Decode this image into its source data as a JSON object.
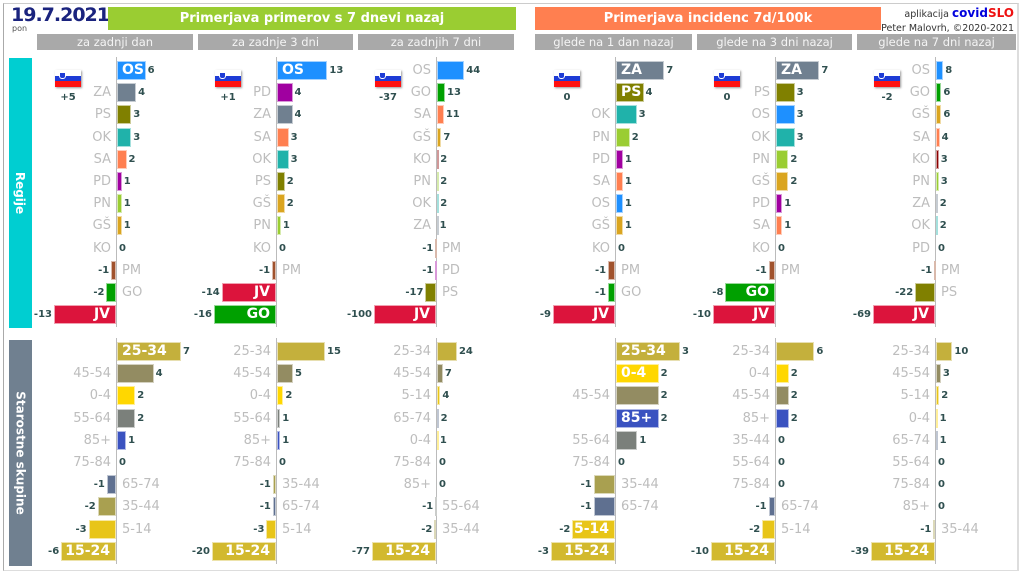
{
  "date": "19.7.2021",
  "day": "pon",
  "header_cases": "Primerjava primerov s 7 dnevi nazaj",
  "header_incidence": "Primerjava incidenc 7d/100k",
  "credit": {
    "app_label": "aplikacija",
    "brand_a": "covid",
    "brand_b": "SLO",
    "author": "Peter Malovrh, ©2020-2021"
  },
  "side_labels": {
    "regions": "Regije",
    "ages": "Starostne skupine"
  },
  "colors": {
    "header_cases": "#9acd32",
    "header_incidence": "#ff7f50",
    "side_regions": "#00ced1",
    "side_ages": "#708090",
    "OS": "#1e90ff",
    "ZA": "#708090",
    "PS": "#808000",
    "OK": "#20b2aa",
    "SA": "#ff7f50",
    "PD": "#a000a0",
    "PN": "#9acd32",
    "GŠ": "#daa520",
    "KO": "#8b0000",
    "PM": "#a0522d",
    "GO": "#00a000",
    "JV": "#dc143c",
    "25-34": "#c4b03c",
    "45-54": "#938c62",
    "0-4": "#ffd700",
    "55-64": "#7b807b",
    "85+": "#3a52c0",
    "75-84": "#999999",
    "65-74": "#5f7090",
    "35-44": "#a9a050",
    "5-14": "#e8c518",
    "15-24": "#d2b92e"
  },
  "chart_data": {
    "type": "bar",
    "orientation": "horizontal-diverging",
    "panels": [
      {
        "title": "za zadnji dan",
        "group": "cases",
        "country_change": "+5",
        "regions": [
          {
            "c": "OS",
            "v": 6,
            "in": true
          },
          {
            "c": "ZA",
            "v": 4
          },
          {
            "c": "PS",
            "v": 3
          },
          {
            "c": "OK",
            "v": 3
          },
          {
            "c": "SA",
            "v": 2
          },
          {
            "c": "PD",
            "v": 1
          },
          {
            "c": "PN",
            "v": 1
          },
          {
            "c": "GŠ",
            "v": 1
          },
          {
            "c": "KO",
            "v": 0
          },
          {
            "c": "PM",
            "v": -1
          },
          {
            "c": "GO",
            "v": -2
          },
          {
            "c": "JV",
            "v": -13,
            "in": true
          }
        ],
        "ages": [
          {
            "c": "25-34",
            "v": 7,
            "in": true
          },
          {
            "c": "45-54",
            "v": 4
          },
          {
            "c": "0-4",
            "v": 2
          },
          {
            "c": "55-64",
            "v": 2
          },
          {
            "c": "85+",
            "v": 1
          },
          {
            "c": "75-84",
            "v": 0
          },
          {
            "c": "65-74",
            "v": -1
          },
          {
            "c": "35-44",
            "v": -2
          },
          {
            "c": "5-14",
            "v": -3
          },
          {
            "c": "15-24",
            "v": -6,
            "in": true
          }
        ]
      },
      {
        "title": "za zadnje 3 dni",
        "group": "cases",
        "country_change": "+1",
        "regions": [
          {
            "c": "OS",
            "v": 13,
            "in": true
          },
          {
            "c": "PD",
            "v": 4
          },
          {
            "c": "ZA",
            "v": 4
          },
          {
            "c": "SA",
            "v": 3
          },
          {
            "c": "OK",
            "v": 3
          },
          {
            "c": "PS",
            "v": 2
          },
          {
            "c": "GŠ",
            "v": 2
          },
          {
            "c": "PN",
            "v": 1
          },
          {
            "c": "KO",
            "v": 0
          },
          {
            "c": "PM",
            "v": -1
          },
          {
            "c": "JV",
            "v": -14,
            "in": true
          },
          {
            "c": "GO",
            "v": -16,
            "in": true
          }
        ],
        "ages": [
          {
            "c": "25-34",
            "v": 15
          },
          {
            "c": "45-54",
            "v": 5
          },
          {
            "c": "0-4",
            "v": 2
          },
          {
            "c": "55-64",
            "v": 1
          },
          {
            "c": "85+",
            "v": 1
          },
          {
            "c": "75-84",
            "v": 0
          },
          {
            "c": "35-44",
            "v": -1
          },
          {
            "c": "65-74",
            "v": -1
          },
          {
            "c": "5-14",
            "v": -3
          },
          {
            "c": "15-24",
            "v": -20,
            "in": true
          }
        ]
      },
      {
        "title": "za zadnjih 7 dni",
        "group": "cases",
        "country_change": "-37",
        "regions": [
          {
            "c": "OS",
            "v": 44
          },
          {
            "c": "GO",
            "v": 13
          },
          {
            "c": "SA",
            "v": 11
          },
          {
            "c": "GŠ",
            "v": 7
          },
          {
            "c": "KO",
            "v": 2
          },
          {
            "c": "PN",
            "v": 2
          },
          {
            "c": "OK",
            "v": 2
          },
          {
            "c": "ZA",
            "v": 1
          },
          {
            "c": "PM",
            "v": -1
          },
          {
            "c": "PD",
            "v": -1
          },
          {
            "c": "PS",
            "v": -17
          },
          {
            "c": "JV",
            "v": -100,
            "in": true
          }
        ],
        "ages": [
          {
            "c": "25-34",
            "v": 24
          },
          {
            "c": "45-54",
            "v": 7
          },
          {
            "c": "5-14",
            "v": 4
          },
          {
            "c": "65-74",
            "v": 2
          },
          {
            "c": "0-4",
            "v": 1
          },
          {
            "c": "75-84",
            "v": 0
          },
          {
            "c": "85+",
            "v": 0
          },
          {
            "c": "55-64",
            "v": -1
          },
          {
            "c": "35-44",
            "v": -2
          },
          {
            "c": "15-24",
            "v": -77,
            "in": true
          }
        ]
      },
      {
        "title": "glede na 1 dan nazaj",
        "group": "incidence",
        "country_change": "0",
        "regions": [
          {
            "c": "ZA",
            "v": 7,
            "in": true
          },
          {
            "c": "PS",
            "v": 4,
            "in": true
          },
          {
            "c": "OK",
            "v": 3
          },
          {
            "c": "PN",
            "v": 2
          },
          {
            "c": "PD",
            "v": 1
          },
          {
            "c": "SA",
            "v": 1
          },
          {
            "c": "OS",
            "v": 1
          },
          {
            "c": "GŠ",
            "v": 1
          },
          {
            "c": "KO",
            "v": 0
          },
          {
            "c": "PM",
            "v": -1
          },
          {
            "c": "GO",
            "v": -1
          },
          {
            "c": "JV",
            "v": -9,
            "in": true
          }
        ],
        "ages": [
          {
            "c": "25-34",
            "v": 3,
            "in": true
          },
          {
            "c": "0-4",
            "v": 2,
            "in": true
          },
          {
            "c": "45-54",
            "v": 2
          },
          {
            "c": "85+",
            "v": 2,
            "in": true
          },
          {
            "c": "55-64",
            "v": 1
          },
          {
            "c": "75-84",
            "v": 0
          },
          {
            "c": "35-44",
            "v": -1
          },
          {
            "c": "65-74",
            "v": -1
          },
          {
            "c": "5-14",
            "v": -2,
            "in": true
          },
          {
            "c": "15-24",
            "v": -3,
            "in": true
          }
        ]
      },
      {
        "title": "glede na 3 dni nazaj",
        "group": "incidence",
        "country_change": "0",
        "regions": [
          {
            "c": "ZA",
            "v": 7,
            "in": true
          },
          {
            "c": "PS",
            "v": 3
          },
          {
            "c": "OS",
            "v": 3
          },
          {
            "c": "OK",
            "v": 3
          },
          {
            "c": "PN",
            "v": 2
          },
          {
            "c": "GŠ",
            "v": 2
          },
          {
            "c": "PD",
            "v": 1
          },
          {
            "c": "SA",
            "v": 1
          },
          {
            "c": "KO",
            "v": 0
          },
          {
            "c": "PM",
            "v": -1
          },
          {
            "c": "GO",
            "v": -8,
            "in": true
          },
          {
            "c": "JV",
            "v": -10,
            "in": true
          }
        ],
        "ages": [
          {
            "c": "25-34",
            "v": 6
          },
          {
            "c": "0-4",
            "v": 2
          },
          {
            "c": "45-54",
            "v": 2
          },
          {
            "c": "85+",
            "v": 2
          },
          {
            "c": "35-44",
            "v": 0
          },
          {
            "c": "55-64",
            "v": 0
          },
          {
            "c": "75-84",
            "v": 0
          },
          {
            "c": "65-74",
            "v": -1
          },
          {
            "c": "5-14",
            "v": -2
          },
          {
            "c": "15-24",
            "v": -10,
            "in": true
          }
        ]
      },
      {
        "title": "glede na 7 dni nazaj",
        "group": "incidence",
        "country_change": "-2",
        "regions": [
          {
            "c": "OS",
            "v": 8
          },
          {
            "c": "GO",
            "v": 6
          },
          {
            "c": "GŠ",
            "v": 6
          },
          {
            "c": "SA",
            "v": 4
          },
          {
            "c": "KO",
            "v": 3
          },
          {
            "c": "PN",
            "v": 3
          },
          {
            "c": "ZA",
            "v": 2
          },
          {
            "c": "OK",
            "v": 2
          },
          {
            "c": "PD",
            "v": 0
          },
          {
            "c": "PM",
            "v": -1
          },
          {
            "c": "PS",
            "v": -22
          },
          {
            "c": "JV",
            "v": -69,
            "in": true
          }
        ],
        "ages": [
          {
            "c": "25-34",
            "v": 10
          },
          {
            "c": "45-54",
            "v": 3
          },
          {
            "c": "5-14",
            "v": 2
          },
          {
            "c": "0-4",
            "v": 1
          },
          {
            "c": "65-74",
            "v": 1
          },
          {
            "c": "55-64",
            "v": 0
          },
          {
            "c": "75-84",
            "v": 0
          },
          {
            "c": "85+",
            "v": 0
          },
          {
            "c": "35-44",
            "v": -1
          },
          {
            "c": "15-24",
            "v": -39,
            "in": true
          }
        ]
      }
    ]
  }
}
